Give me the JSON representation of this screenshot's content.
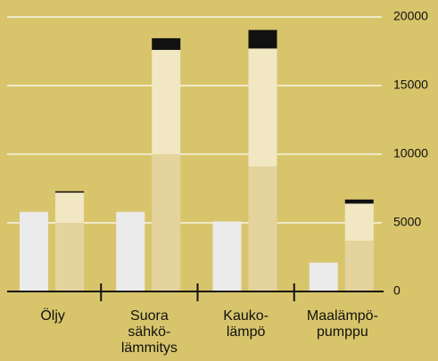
{
  "chart_data": {
    "type": "bar",
    "categories": [
      [
        "Öljy"
      ],
      [
        "Suora",
        "sähkö-",
        "lämmitys"
      ],
      [
        "Kauko-",
        "lämpö"
      ],
      [
        "Maalämpö-",
        "pumppu"
      ]
    ],
    "series": [
      {
        "color": "#ebebeb",
        "stack": 0,
        "values": [
          5800,
          5800,
          5100,
          2100
        ]
      },
      {
        "color": "#e4d39d",
        "stack": 1,
        "values": [
          5000,
          10000,
          9100,
          3700
        ]
      },
      {
        "color": "#f1e7c2",
        "stack": 1,
        "values": [
          2200,
          7600,
          8600,
          2700
        ]
      },
      {
        "color": "#111111",
        "stack": 1,
        "values": [
          100,
          850,
          1350,
          300
        ]
      }
    ],
    "ylim": [
      0,
      20000
    ],
    "yticks": [
      0,
      5000,
      10000,
      15000,
      20000
    ],
    "grid": true,
    "grid_color": "#ffffff",
    "background": "#d8c56b"
  }
}
